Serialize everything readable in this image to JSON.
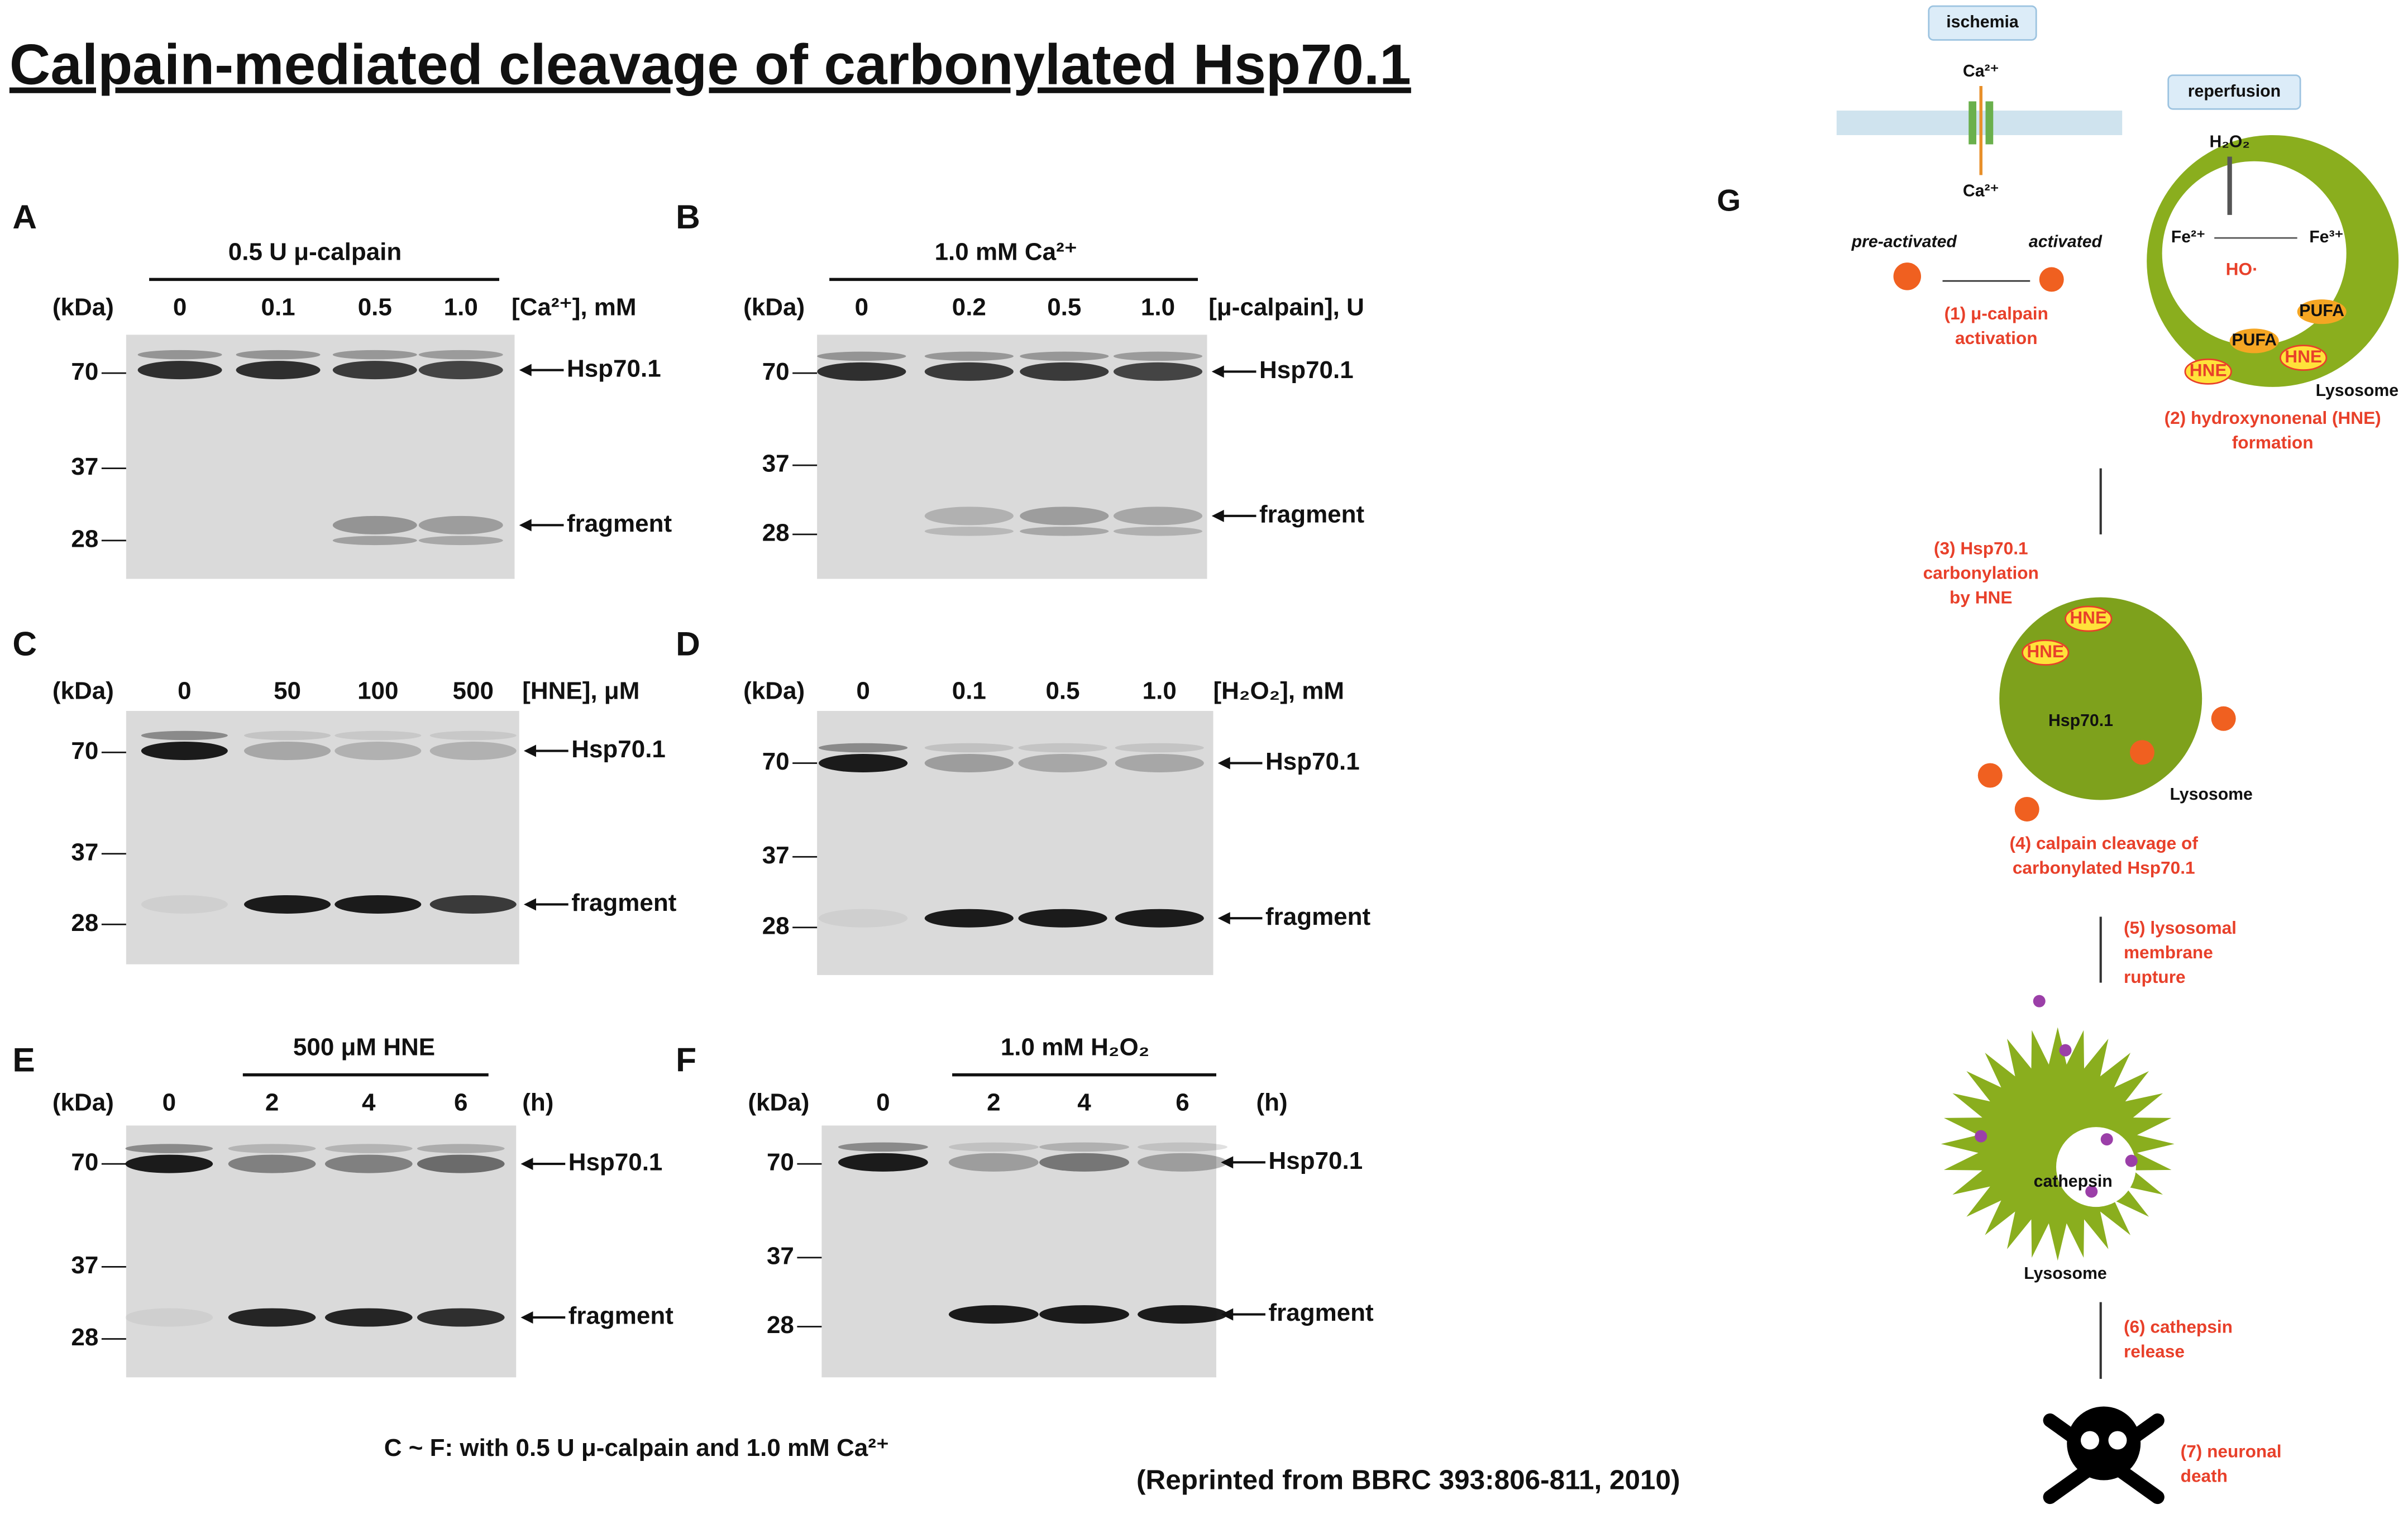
{
  "title": "Calpain-mediated cleavage of carbonylated Hsp70.1",
  "panels": [
    {
      "label": "A",
      "header": "0.5 U μ-calpain",
      "kda": "(kDa)",
      "lanes": [
        "0",
        "0.1",
        "0.5",
        "1.0"
      ],
      "unit": "[Ca²⁺], mM",
      "markers": [
        "70",
        "37",
        "28"
      ],
      "bands": [
        "Hsp70.1",
        "fragment"
      ]
    },
    {
      "label": "B",
      "header": "1.0 mM Ca²⁺",
      "kda": "(kDa)",
      "lanes": [
        "0",
        "0.2",
        "0.5",
        "1.0"
      ],
      "unit": "[μ-calpain], U",
      "markers": [
        "70",
        "37",
        "28"
      ],
      "bands": [
        "Hsp70.1",
        "fragment"
      ]
    },
    {
      "label": "C",
      "kda": "(kDa)",
      "lanes": [
        "0",
        "50",
        "100",
        "500"
      ],
      "unit": "[HNE], μM",
      "markers": [
        "70",
        "37",
        "28"
      ],
      "bands": [
        "Hsp70.1",
        "fragment"
      ]
    },
    {
      "label": "D",
      "kda": "(kDa)",
      "lanes": [
        "0",
        "0.1",
        "0.5",
        "1.0"
      ],
      "unit": "[H₂O₂], mM",
      "markers": [
        "70",
        "37",
        "28"
      ],
      "bands": [
        "Hsp70.1",
        "fragment"
      ]
    },
    {
      "label": "E",
      "header": "500 μM HNE",
      "kda": "(kDa)",
      "lanes": [
        "0",
        "2",
        "4",
        "6"
      ],
      "unit": "(h)",
      "markers": [
        "70",
        "37",
        "28"
      ],
      "bands": [
        "Hsp70.1",
        "fragment"
      ]
    },
    {
      "label": "F",
      "header": "1.0 mM H₂O₂",
      "kda": "(kDa)",
      "lanes": [
        "0",
        "2",
        "4",
        "6"
      ],
      "unit": "(h)",
      "markers": [
        "70",
        "37",
        "28"
      ],
      "bands": [
        "Hsp70.1",
        "fragment"
      ]
    }
  ],
  "note": "C ~ F: with 0.5 U μ-calpain and 1.0 mM Ca²⁺",
  "credit": "(Reprinted from BBRC 393:806-811, 2010)",
  "pathway": {
    "label": "G",
    "ischemia": "ischemia",
    "reperfusion": "reperfusion",
    "ca_in": "Ca²⁺",
    "ca_out": "Ca²⁺",
    "pre_activated": "pre-activated",
    "activated": "activated",
    "h2o2": "H₂O₂",
    "fe2": "Fe²⁺",
    "fe3": "Fe³⁺",
    "ho": "HO·",
    "pufa": [
      "PUFA",
      "PUFA"
    ],
    "hne": [
      "HNE",
      "HNE",
      "HNE",
      "HNE"
    ],
    "hsp": "Hsp70.1",
    "lysosome": [
      "Lysosome",
      "Lysosome",
      "Lysosome"
    ],
    "cathepsin": "cathepsin",
    "steps": [
      [
        "(1) μ-calpain",
        "activation"
      ],
      [
        "(2) hydroxynonenal (HNE)",
        "formation"
      ],
      [
        "(3) Hsp70.1",
        "carbonylation",
        "by HNE"
      ],
      [
        "(4) calpain cleavage of",
        "carbonylated Hsp70.1"
      ],
      [
        "(5) lysosomal",
        "membrane",
        "rupture"
      ],
      [
        "(6) cathepsin",
        "release"
      ],
      [
        "(7) neuronal",
        "death"
      ]
    ]
  }
}
